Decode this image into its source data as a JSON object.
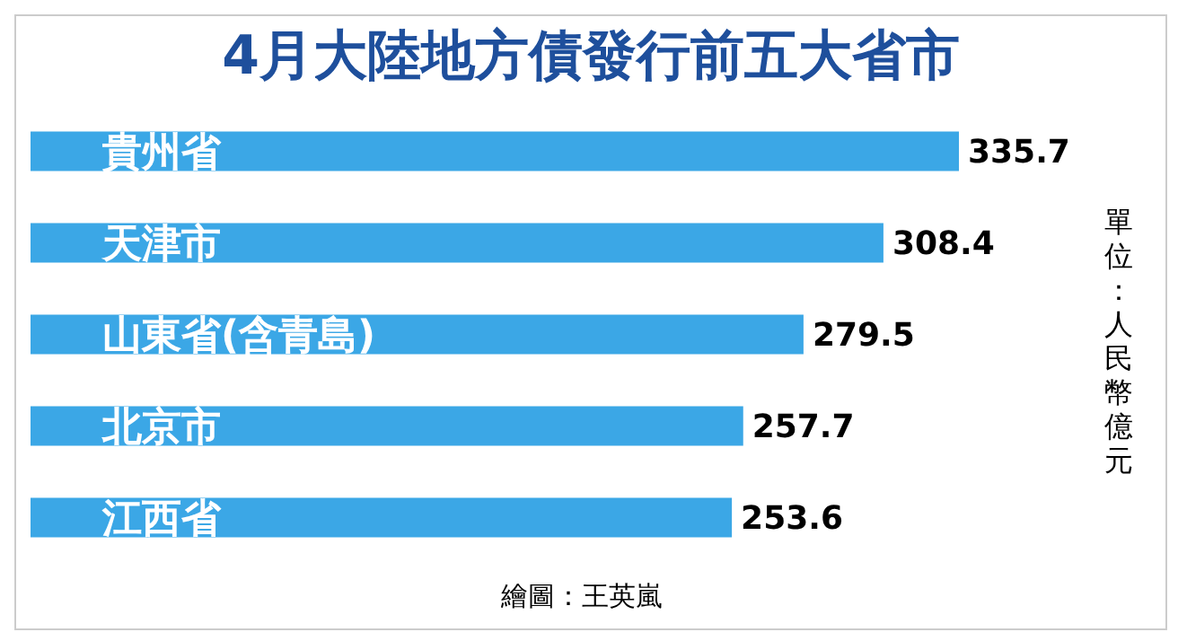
{
  "chart_data": {
    "type": "bar",
    "orientation": "horizontal",
    "title": "4月大陸地方債發行前五大省市",
    "categories": [
      "貴州省",
      "天津市",
      "山東省(含青島)",
      "北京市",
      "江西省"
    ],
    "values": [
      335.7,
      308.4,
      279.5,
      257.7,
      253.6
    ],
    "color": "#3ba7e6",
    "data_labels": true,
    "tick_labels": false,
    "annotations": [
      "單位：人民幣億元",
      "繪圖：王英嵐"
    ]
  }
}
